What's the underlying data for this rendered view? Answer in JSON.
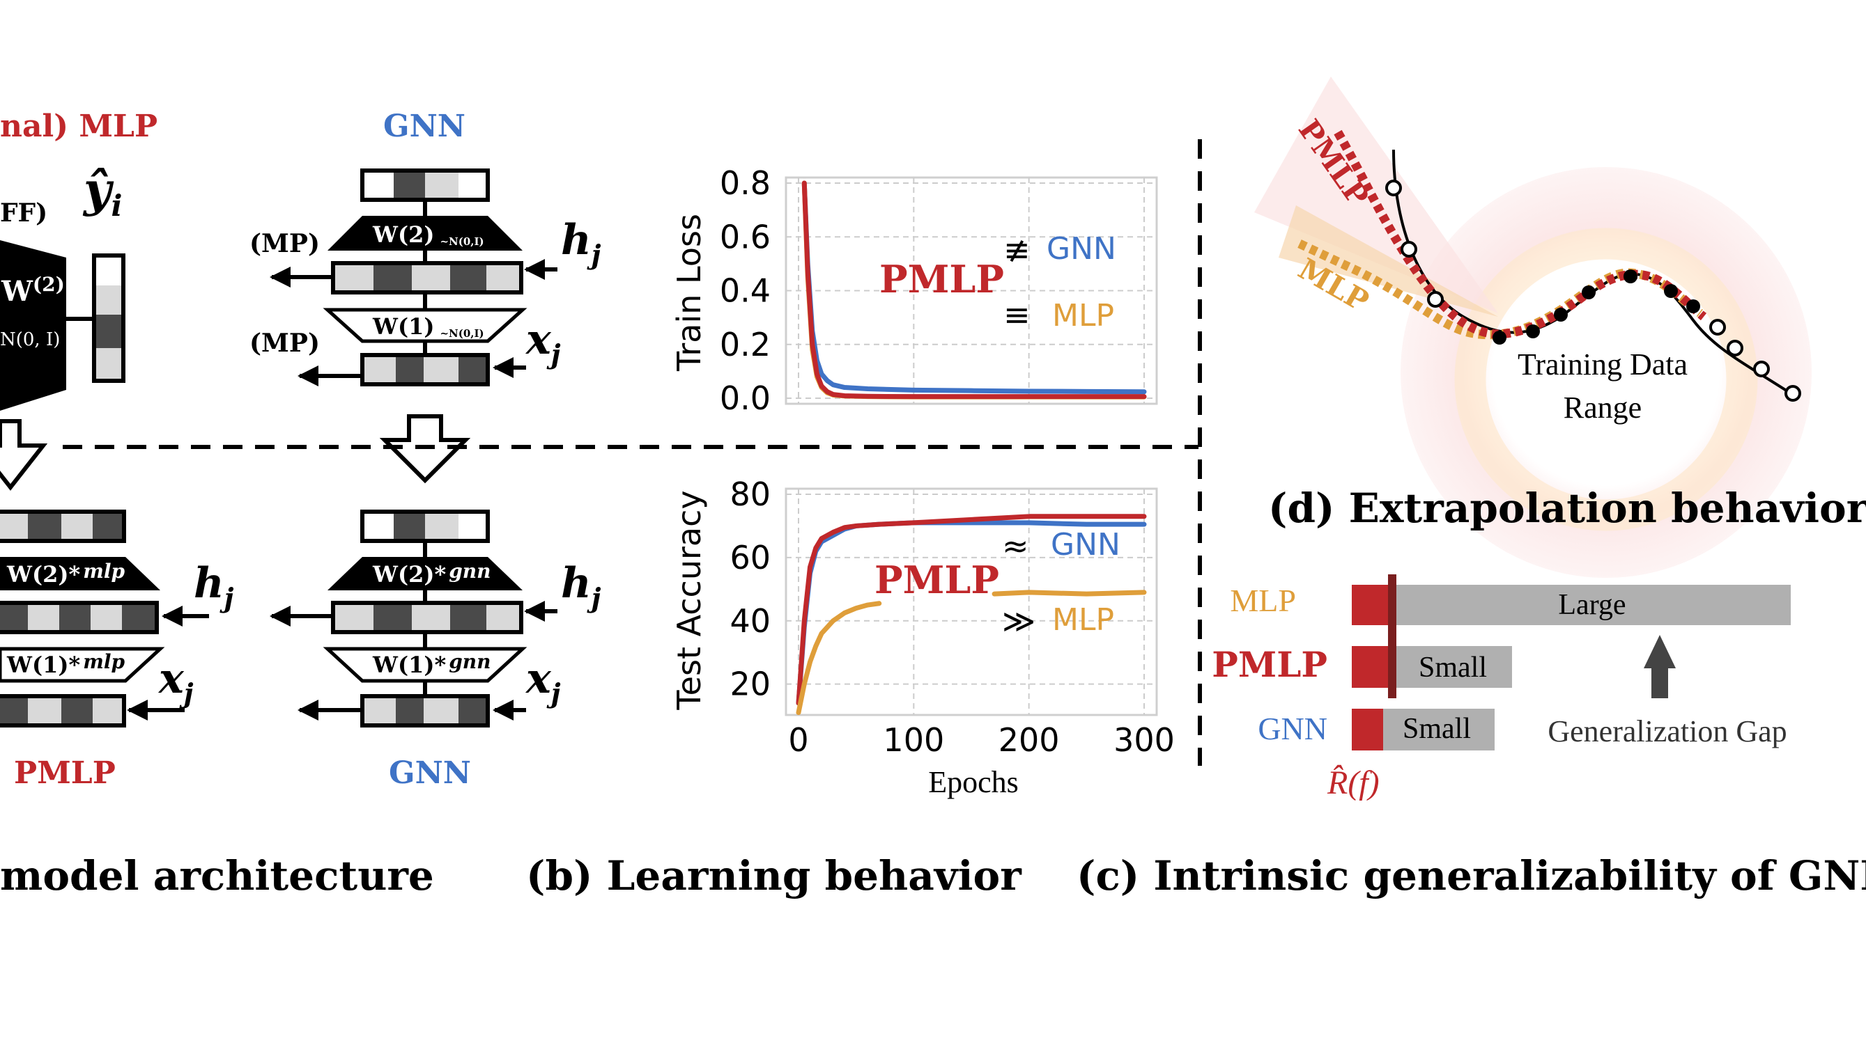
{
  "colors": {
    "red": "#c0282b",
    "blue": "#3f73c6",
    "orange": "#df9e3a",
    "dark_red": "#7a1f1f",
    "gray_bar": "#b0b0b0",
    "black": "#000000"
  },
  "panel_a": {
    "title_mlp": "nal) MLP",
    "ff_label": "FF)",
    "y_hat": "ŷ",
    "y_hat_sub": "i",
    "w2_label": "W",
    "w2_sup": "(2)",
    "w2_dist": "N(0, I)",
    "gnn_title": "GNN",
    "mp_label_1": "(MP)",
    "mp_label_2": "(MP)",
    "gnn_w2": "W(2)",
    "gnn_w2_dist": "~N(0,I)",
    "gnn_w1": "W(1)",
    "gnn_w1_dist": "~N(0,I)",
    "h": "h",
    "h_sub": "j",
    "x": "x",
    "x_sub": "j",
    "pmlp_w2": "W(2)*",
    "pmlp_w2_sub": "mlp",
    "pmlp_w1": "W(1)*",
    "pmlp_w1_sub": "mlp",
    "gnn2_w2": "W(2)*",
    "gnn2_w2_sub": "gnn",
    "gnn2_w1": "W(1)*",
    "gnn2_w1_sub": "gnn",
    "pmlp_bottom": "PMLP",
    "gnn_bottom": "GNN",
    "caption": "model architecture"
  },
  "panel_b": {
    "caption": "(b) Learning behavior",
    "train_ylabel": "Train Loss",
    "test_ylabel": "Test Accuracy",
    "xlabel": "Epochs",
    "train_pmlp": "PMLP",
    "train_rel_gnn": "≢",
    "train_gnn": "GNN",
    "train_rel_mlp": "≡",
    "train_mlp": "MLP",
    "test_pmlp": "PMLP",
    "test_rel_gnn": "≈",
    "test_gnn": "GNN",
    "test_rel_mlp": "≫",
    "test_mlp": "MLP"
  },
  "chart_data": [
    {
      "type": "line",
      "ylabel": "Train Loss",
      "xlabel": "",
      "xlim": [
        0,
        300
      ],
      "ylim": [
        0,
        0.8
      ],
      "xticks": [
        0,
        100,
        200,
        300
      ],
      "yticks": [
        "0.0",
        "0.2",
        "0.4",
        "0.6",
        "0.8"
      ],
      "grid": true,
      "series": [
        {
          "name": "GNN",
          "color": "#3f73c6",
          "x": [
            5,
            8,
            12,
            16,
            20,
            25,
            30,
            40,
            60,
            100,
            150,
            200,
            250,
            300
          ],
          "y": [
            0.8,
            0.5,
            0.25,
            0.14,
            0.09,
            0.065,
            0.05,
            0.04,
            0.035,
            0.03,
            0.028,
            0.026,
            0.025,
            0.024
          ]
        },
        {
          "name": "MLP",
          "color": "#df9e3a",
          "x": [
            5,
            8,
            12,
            16,
            20,
            25,
            30,
            40,
            60,
            100,
            200,
            300
          ],
          "y": [
            0.8,
            0.45,
            0.18,
            0.08,
            0.04,
            0.02,
            0.012,
            0.008,
            0.006,
            0.005,
            0.005,
            0.005
          ]
        },
        {
          "name": "PMLP",
          "color": "#c0282b",
          "x": [
            5,
            8,
            12,
            16,
            20,
            25,
            30,
            40,
            60,
            100,
            200,
            300
          ],
          "y": [
            0.8,
            0.47,
            0.2,
            0.09,
            0.045,
            0.024,
            0.014,
            0.009,
            0.007,
            0.006,
            0.006,
            0.006
          ]
        }
      ]
    },
    {
      "type": "line",
      "ylabel": "Test Accuracy",
      "xlabel": "Epochs",
      "xlim": [
        0,
        300
      ],
      "ylim": [
        12,
        80
      ],
      "xticks": [
        0,
        100,
        200,
        300
      ],
      "yticks": [
        20,
        40,
        60,
        80
      ],
      "grid": true,
      "series": [
        {
          "name": "GNN",
          "color": "#3f73c6",
          "x": [
            0,
            5,
            10,
            15,
            20,
            30,
            40,
            50,
            70,
            100,
            150,
            200,
            250,
            300
          ],
          "y": [
            14,
            38,
            55,
            62,
            65,
            67,
            69,
            70,
            70.5,
            71,
            71,
            71,
            70.5,
            70.5
          ]
        },
        {
          "name": "PMLP",
          "color": "#c0282b",
          "x": [
            0,
            5,
            10,
            15,
            20,
            30,
            40,
            50,
            70,
            100,
            150,
            200,
            250,
            300
          ],
          "y": [
            14,
            40,
            57,
            63,
            66,
            68,
            69.5,
            70,
            70.5,
            71,
            72,
            73,
            73,
            73
          ]
        },
        {
          "name": "MLP",
          "color": "#df9e3a",
          "x": [
            0,
            5,
            10,
            15,
            20,
            30,
            40,
            50,
            60,
            70
          ],
          "y": [
            11,
            20,
            27,
            32,
            36,
            40,
            42.5,
            44,
            45,
            45.5
          ]
        },
        {
          "name": "MLP",
          "color": "#df9e3a",
          "x": [
            170,
            200,
            250,
            300
          ],
          "y": [
            48.5,
            49,
            48.5,
            49
          ]
        }
      ]
    }
  ],
  "panel_c": {
    "caption": "(c) Intrinsic generalizability of GNN",
    "rows": [
      {
        "label": "MLP",
        "color": "#df9e3a",
        "gap_label": "Large",
        "gap": 1.0
      },
      {
        "label": "PMLP",
        "color": "#c0282b",
        "gap_label": "Small",
        "gap": 0.25
      },
      {
        "label": "GNN",
        "color": "#3f73c6",
        "gap_label": "Small",
        "gap": 0.25
      }
    ],
    "risk_label": "R̂(f)",
    "gap_title": "Generalization Gap"
  },
  "panel_d": {
    "caption": "(d) Extrapolation behavior",
    "pmlp_label": "PMLP",
    "mlp_label": "MLP",
    "range_label_1": "Training Data",
    "range_label_2": "Range"
  }
}
